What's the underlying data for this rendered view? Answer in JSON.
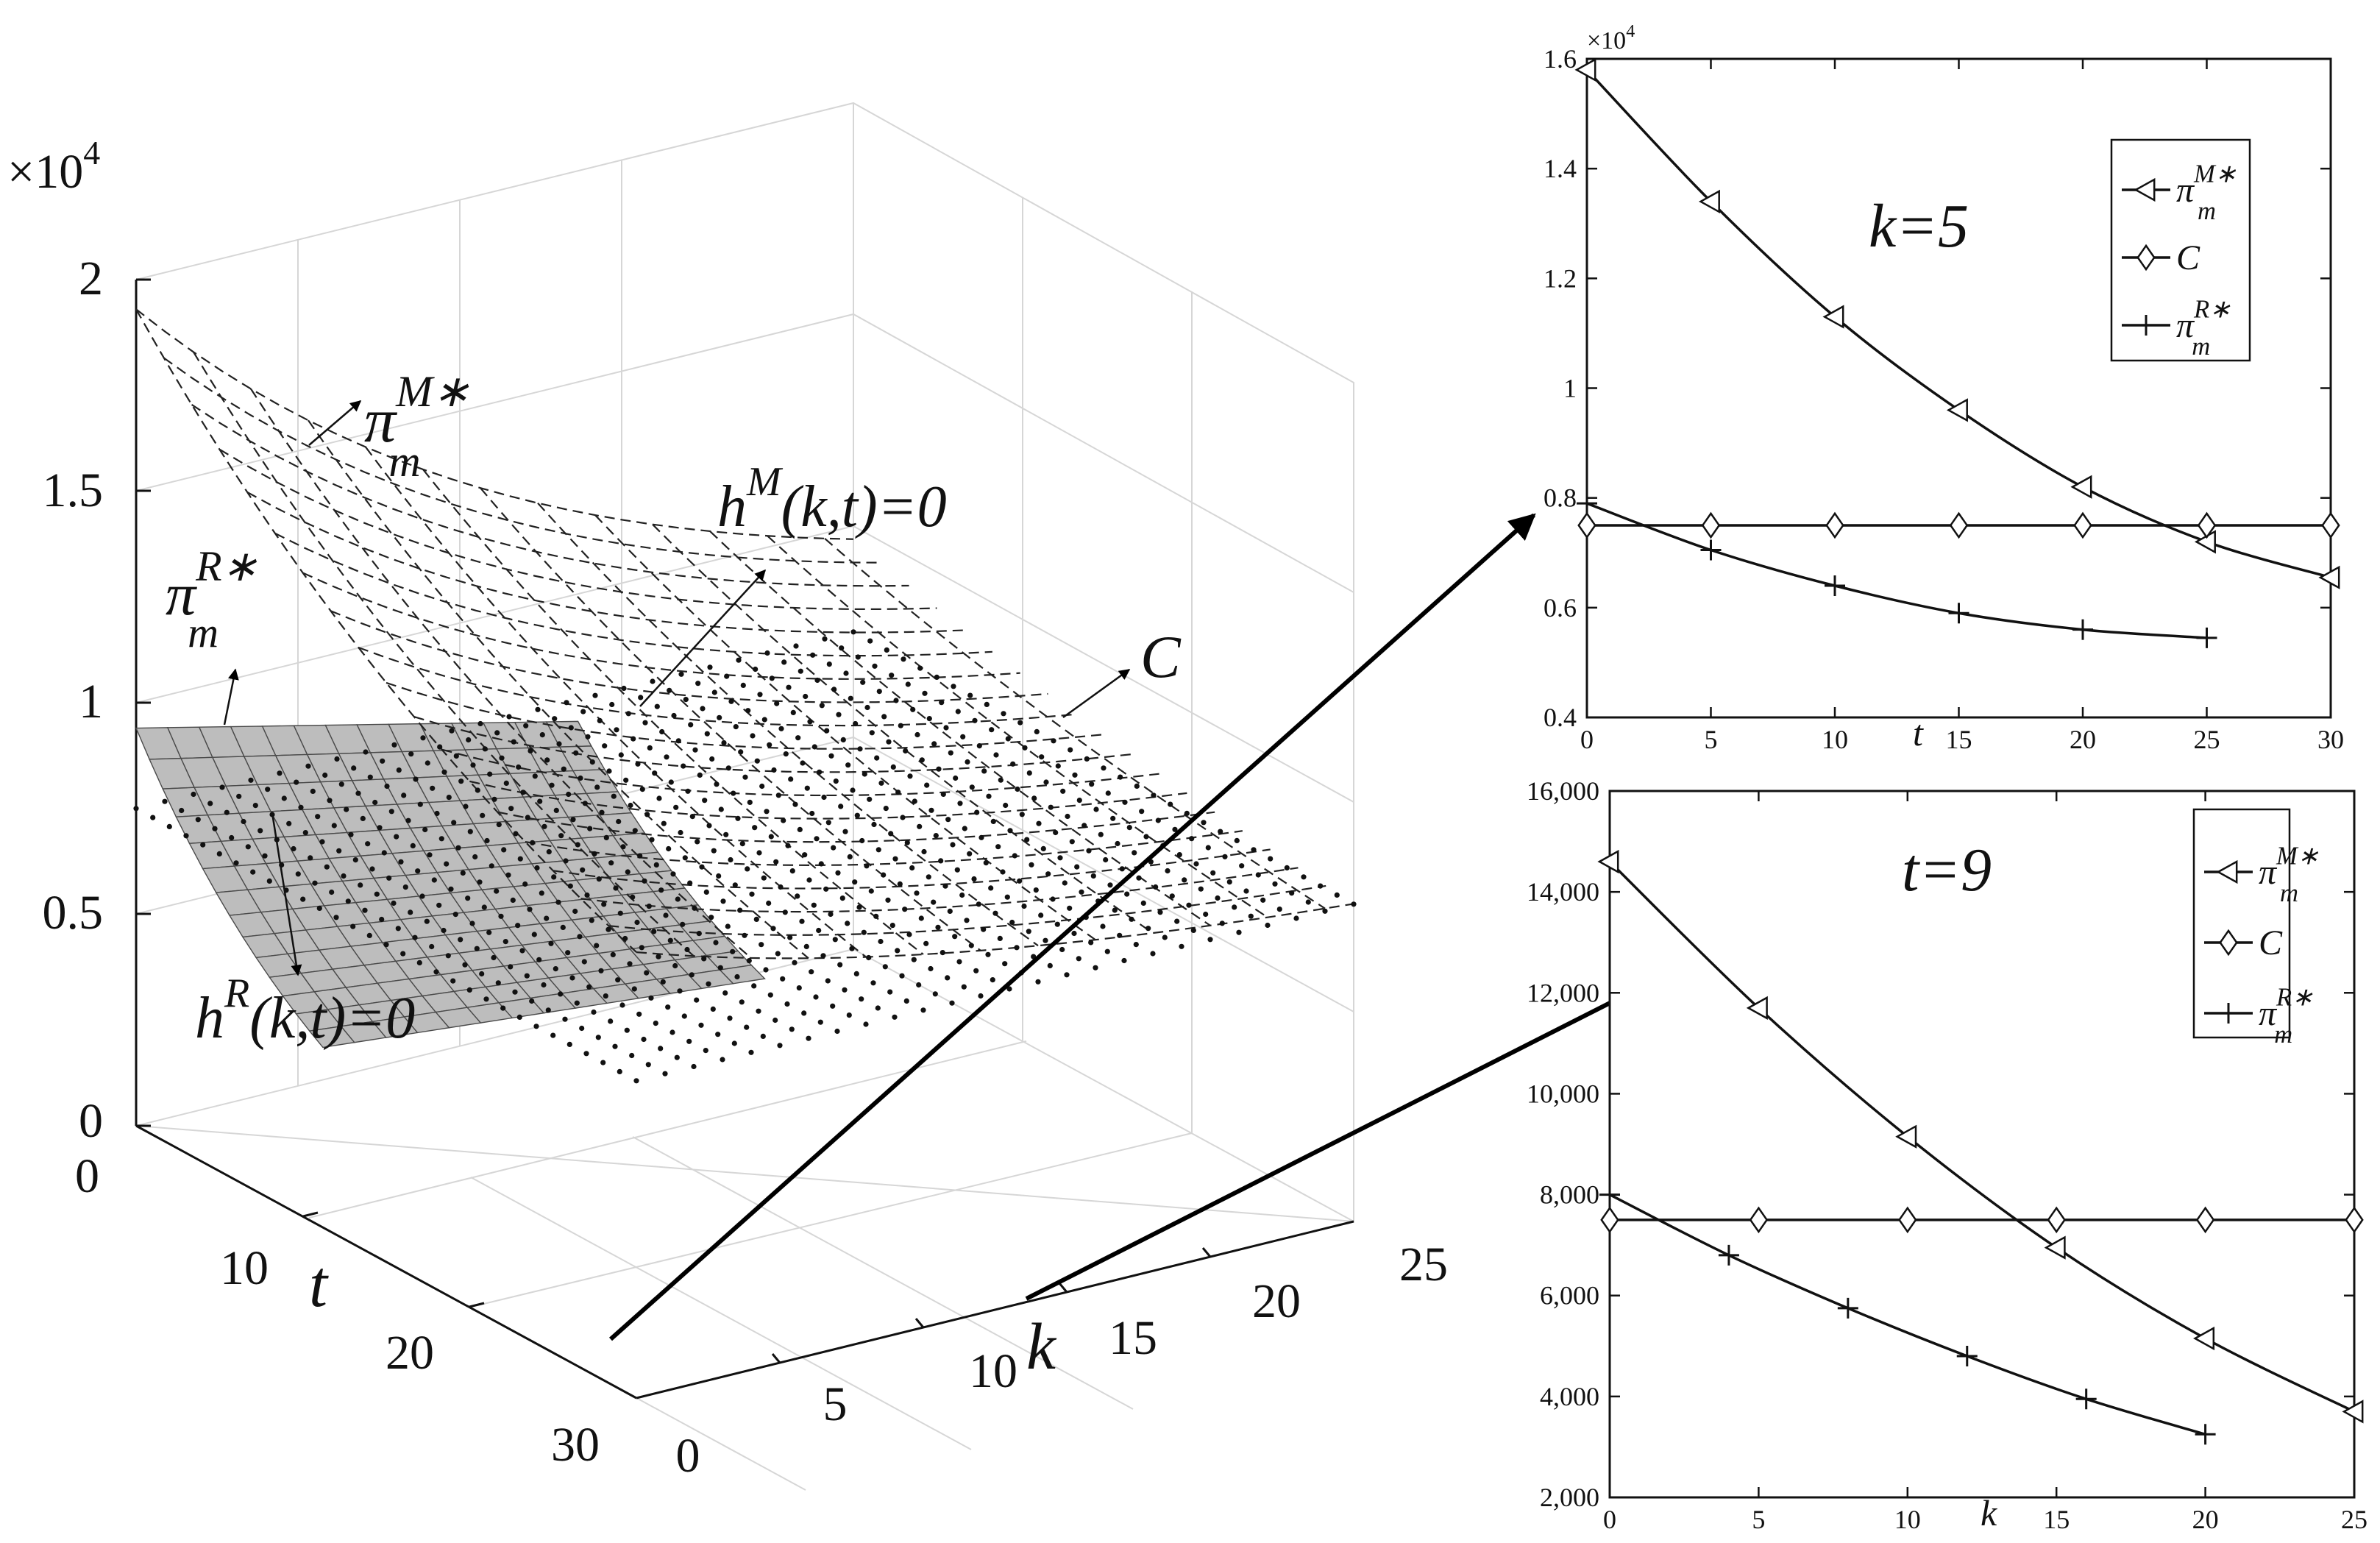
{
  "chart_data": [
    {
      "type": "surface3d",
      "ztick_labels": [
        "0",
        "0.5",
        "1",
        "1.5",
        "2"
      ],
      "z_multiplier": "×10",
      "z_multiplier_exp": "4",
      "zlim": [
        0,
        20000
      ],
      "xlabel": "t",
      "xtick_labels": [
        "0",
        "10",
        "20",
        "30"
      ],
      "xlim": [
        0,
        30
      ],
      "ylabel": "k",
      "ytick_labels": [
        "0",
        "5",
        "10",
        "15",
        "20",
        "25"
      ],
      "ylim": [
        0,
        25
      ],
      "annotations": {
        "pi_M": {
          "base": "π",
          "sup": "M",
          "sub": "m",
          "star": "∗"
        },
        "pi_R": {
          "base": "π",
          "sup": "R",
          "sub": "m",
          "star": "∗"
        },
        "hM": {
          "pre": "h",
          "sup": "M",
          "post": "(k,t)=0"
        },
        "hR": {
          "pre": "h",
          "sup": "R",
          "post": "(k,t)=0"
        },
        "C": "C"
      }
    },
    {
      "type": "line",
      "annotation": "k=5",
      "xlabel": "t",
      "xlim": [
        0,
        30
      ],
      "xtick_labels": [
        "0",
        "5",
        "10",
        "15",
        "20",
        "25",
        "30"
      ],
      "ylim": [
        0.4,
        1.6
      ],
      "ytick_labels": [
        "0.4",
        "0.6",
        "0.8",
        "1",
        "1.2",
        "1.4",
        "1.6"
      ],
      "y_multiplier": "×10",
      "y_multiplier_exp": "4",
      "legend_position": "top-right",
      "series": [
        {
          "name": "π_m^M∗",
          "legend": {
            "base": "π",
            "sup": "M",
            "sub": "m",
            "star": "∗"
          },
          "marker": "triangle-left",
          "x": [
            0,
            5,
            10,
            15,
            20,
            25,
            30
          ],
          "y": [
            1.58,
            1.34,
            1.13,
            0.96,
            0.82,
            0.72,
            0.655
          ]
        },
        {
          "name": "C",
          "legend": {
            "base": "C"
          },
          "marker": "diamond",
          "x": [
            0,
            5,
            10,
            15,
            20,
            25,
            30
          ],
          "y": [
            0.75,
            0.75,
            0.75,
            0.75,
            0.75,
            0.75,
            0.75
          ]
        },
        {
          "name": "π_m^R∗",
          "legend": {
            "base": "π",
            "sup": "R",
            "sub": "m",
            "star": "∗"
          },
          "marker": "plus",
          "x": [
            0,
            5,
            10,
            15,
            20,
            25
          ],
          "y": [
            0.79,
            0.705,
            0.64,
            0.59,
            0.56,
            0.545
          ]
        }
      ]
    },
    {
      "type": "line",
      "annotation": "t=9",
      "xlabel": "k",
      "xlim": [
        0,
        25
      ],
      "xtick_labels": [
        "0",
        "5",
        "10",
        "15",
        "20",
        "25"
      ],
      "ylim": [
        2000,
        16000
      ],
      "ytick_labels": [
        "2,000",
        "4,000",
        "6,000",
        "8,000",
        "10,000",
        "12,000",
        "14,000",
        "16,000"
      ],
      "legend_position": "top-right",
      "series": [
        {
          "name": "π_m^M∗",
          "legend": {
            "base": "π",
            "sup": "M",
            "sub": "m",
            "star": "∗"
          },
          "marker": "triangle-left",
          "x": [
            0,
            5,
            10,
            15,
            20,
            25
          ],
          "y": [
            14600,
            11700,
            9150,
            6950,
            5150,
            3700
          ]
        },
        {
          "name": "C",
          "legend": {
            "base": "C"
          },
          "marker": "diamond",
          "x": [
            0,
            5,
            10,
            15,
            20,
            25
          ],
          "y": [
            7500,
            7500,
            7500,
            7500,
            7500,
            7500
          ]
        },
        {
          "name": "π_m^R∗",
          "legend": {
            "base": "π",
            "sup": "R",
            "sub": "m",
            "star": "∗"
          },
          "marker": "plus",
          "x": [
            0,
            4,
            8,
            12,
            16,
            20
          ],
          "y": [
            8000,
            6800,
            5750,
            4800,
            3950,
            3250
          ]
        }
      ]
    }
  ]
}
